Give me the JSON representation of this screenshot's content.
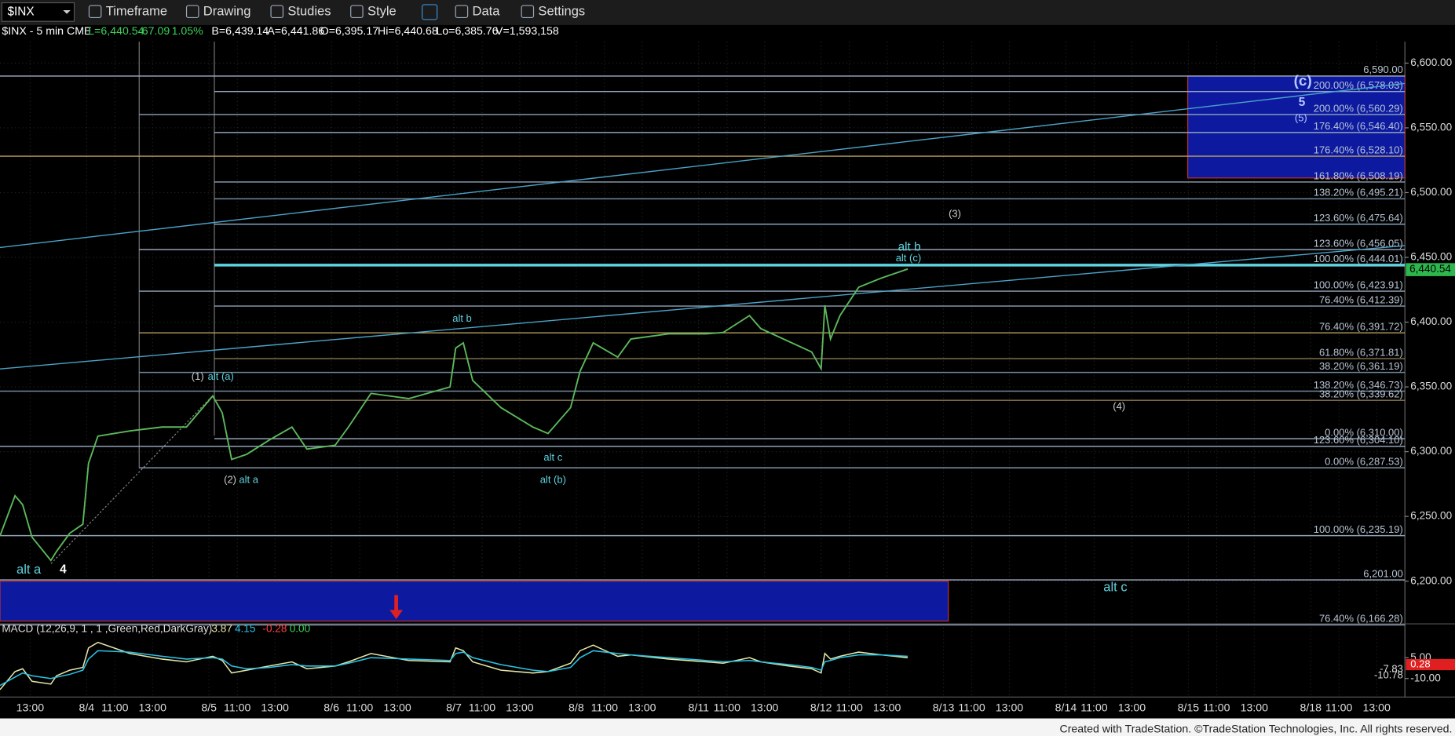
{
  "toolbar": {
    "items": [
      "Timeframe",
      "Drawing",
      "Studies",
      "Style",
      "Data",
      "Settings"
    ]
  },
  "info": [
    "$INX - 5 min CME",
    "L=6,440.54",
    "67.09",
    "1.05%",
    "B=6,439.14",
    "A=6,441.86",
    "O=6,395.17",
    "Hi=6,440.68",
    "Lo=6,385.76",
    "V=1,593,158"
  ],
  "chart_data": [
    {
      "type": "line",
      "x": [
        -4.6,
        -3.8,
        -3.4,
        -2.9,
        -1.9,
        -1.6,
        -0.9,
        -0.2,
        0.1,
        0.6,
        2.3,
        4.0,
        5.3,
        6.7,
        7.2,
        7.7,
        8.5,
        9.7,
        10.9,
        11.7,
        13.2,
        13.9,
        15.1,
        17.1,
        19.3,
        19.6,
        20.0,
        20.5,
        22.0,
        23.7,
        24.5,
        25.7,
        26.2,
        26.9,
        28.2,
        28.9,
        30.9,
        32.9,
        33.8,
        35.2,
        35.8,
        37.3,
        38.5,
        39.0,
        39.2,
        39.5,
        40.0,
        41.0,
        42.2,
        43.6
      ],
      "series": [
        {
          "name": "$INX",
          "color": "#5cb85c",
          "values": [
            6235,
            6266,
            6259,
            6234,
            6216,
            6223,
            6237,
            6244,
            6291,
            6312,
            6316,
            6319,
            6319,
            6343,
            6330,
            6294,
            6298,
            6309,
            6319,
            6302,
            6305,
            6319,
            6345,
            6341,
            6350,
            6380,
            6384,
            6355,
            6334,
            6319,
            6314,
            6334,
            6362,
            6384,
            6373,
            6387,
            6391,
            6391,
            6392,
            6405,
            6395,
            6385,
            6377,
            6364,
            6413,
            6387,
            6405,
            6427,
            6434,
            6441
          ]
        }
      ],
      "xlim": [
        -4.6,
        70
      ],
      "ylim": [
        6166,
        6616.5
      ],
      "xticks": [
        {
          "value": -3,
          "label": "13:00"
        },
        {
          "value": 0,
          "label": "8/4"
        },
        {
          "value": 1.5,
          "label": "11:00"
        },
        {
          "value": 3.5,
          "label": "13:00"
        },
        {
          "value": 6.5,
          "label": "8/5"
        },
        {
          "value": 8,
          "label": "11:00"
        },
        {
          "value": 10,
          "label": "13:00"
        },
        {
          "value": 13,
          "label": "8/6"
        },
        {
          "value": 14.5,
          "label": "11:00"
        },
        {
          "value": 16.5,
          "label": "13:00"
        },
        {
          "value": 19.5,
          "label": "8/7"
        },
        {
          "value": 21,
          "label": "11:00"
        },
        {
          "value": 23,
          "label": "13:00"
        },
        {
          "value": 26,
          "label": "8/8"
        },
        {
          "value": 27.5,
          "label": "11:00"
        },
        {
          "value": 29.5,
          "label": "13:00"
        },
        {
          "value": 32.5,
          "label": "8/11"
        },
        {
          "value": 34,
          "label": "11:00"
        },
        {
          "value": 36,
          "label": "13:00"
        },
        {
          "value": 39,
          "label": "8/12"
        },
        {
          "value": 40.5,
          "label": "11:00"
        },
        {
          "value": 42.5,
          "label": "13:00"
        },
        {
          "value": 45.5,
          "label": "8/13"
        },
        {
          "value": 47,
          "label": "11:00"
        },
        {
          "value": 49,
          "label": "13:00"
        },
        {
          "value": 52,
          "label": "8/14"
        },
        {
          "value": 53.5,
          "label": "11:00"
        },
        {
          "value": 55.5,
          "label": "13:00"
        },
        {
          "value": 58.5,
          "label": "8/15"
        },
        {
          "value": 60,
          "label": "11:00"
        },
        {
          "value": 62,
          "label": "13:00"
        },
        {
          "value": 65,
          "label": "8/18"
        },
        {
          "value": 66.5,
          "label": "11:00"
        },
        {
          "value": 68.5,
          "label": "13:00"
        }
      ],
      "yticks": [
        {
          "value": 6200,
          "label": "6,200.00"
        },
        {
          "value": 6250,
          "label": "6,250.00"
        },
        {
          "value": 6300,
          "label": "6,300.00"
        },
        {
          "value": 6350,
          "label": "6,350.00"
        },
        {
          "value": 6400,
          "label": "6,400.00"
        },
        {
          "value": 6450,
          "label": "6,450.00"
        },
        {
          "value": 6500,
          "label": "6,500.00"
        },
        {
          "value": 6550,
          "label": "6,550.00"
        },
        {
          "value": 6600,
          "label": "6,600.00"
        }
      ],
      "grid": true,
      "levels": [
        {
          "value": 6590.0,
          "label": "6,590.00",
          "color": "#9fb0c4"
        },
        {
          "value": 6578.03,
          "label": "200.00% (6,578.03)",
          "color": "#8fa3b8"
        },
        {
          "value": 6560.29,
          "label": "200.00% (6,560.29)",
          "color": "#8fa3b8"
        },
        {
          "value": 6546.4,
          "label": "176.40% (6,546.40)",
          "color": "#8fa3b8"
        },
        {
          "value": 6528.1,
          "label": "176.40% (6,528.10)",
          "color": "#b8a060"
        },
        {
          "value": 6508.19,
          "label": "161.80% (6,508.19)",
          "color": "#8fa3b8"
        },
        {
          "value": 6495.21,
          "label": "138.20% (6,495.21)",
          "color": "#6f8aa0"
        },
        {
          "value": 6475.64,
          "label": "123.60% (6,475.64)",
          "color": "#8fb3d0"
        },
        {
          "value": 6456.05,
          "label": "123.60% (6,456.05)",
          "color": "#9fb0c4"
        },
        {
          "value": 6444.01,
          "label": "100.00% (6,444.01)",
          "color": "#5fd3e0"
        },
        {
          "value": 6423.91,
          "label": "100.00% (6,423.91)",
          "color": "#8fa3b8"
        },
        {
          "value": 6412.39,
          "label": "76.40% (6,412.39)",
          "color": "#8fa3b8"
        },
        {
          "value": 6391.72,
          "label": "76.40% (6,391.72)",
          "color": "#b8a060"
        },
        {
          "value": 6371.81,
          "label": "61.80% (6,371.81)",
          "color": "#8a7a50"
        },
        {
          "value": 6361.19,
          "label": "38.20% (6,361.19)",
          "color": "#6f8aa0"
        },
        {
          "value": 6346.73,
          "label": "138.20% (6,346.73)",
          "color": "#6f8aa0"
        },
        {
          "value": 6339.62,
          "label": "38.20% (6,339.62)",
          "color": "#8a7a50"
        },
        {
          "value": 6310.0,
          "label": "0.00% (6,310.00)",
          "color": "#8fa3b8"
        },
        {
          "value": 6304.1,
          "label": "123.60% (6,304.10)",
          "color": "#8fa3b8"
        },
        {
          "value": 6287.53,
          "label": "0.00% (6,287.53)",
          "color": "#8fa3b8"
        },
        {
          "value": 6235.19,
          "label": "100.00% (6,235.19)",
          "color": "#8fa3b8"
        },
        {
          "value": 6201.0,
          "label": "6,201.00",
          "color": "#9fb0c4"
        },
        {
          "value": 6166.28,
          "label": "76.40% (6,166.28)",
          "color": "#8fa3b8"
        }
      ],
      "annotations": [
        "(1)",
        "alt (a)",
        "(2)",
        "alt a",
        "alt b",
        "alt c",
        "alt (b)",
        "alt b",
        "alt (c)",
        "(3)",
        "(4)",
        "(c)",
        "5",
        "(5)",
        "alt a",
        "4",
        "alt c"
      ],
      "last_price": {
        "value": 6440.54,
        "label": "6,440.54"
      }
    },
    {
      "type": "line",
      "title": "MACD (12,26,9, 1 , 1 ,Green,Red,DarkGray)",
      "readouts": [
        "3.87",
        "4.15",
        "-0.28",
        "0.00"
      ],
      "x": [
        -4.6,
        -3.8,
        -3.4,
        -2.9,
        -1.9,
        -1.6,
        -0.9,
        -0.2,
        0.1,
        0.6,
        2.3,
        4.0,
        5.3,
        6.7,
        7.2,
        7.7,
        8.5,
        9.7,
        10.9,
        11.7,
        13.2,
        13.9,
        15.1,
        17.1,
        19.3,
        19.6,
        20.0,
        20.5,
        22.0,
        23.7,
        24.5,
        25.7,
        26.2,
        26.9,
        28.2,
        28.9,
        30.9,
        32.9,
        33.8,
        35.2,
        35.8,
        37.3,
        38.5,
        39.0,
        39.2,
        39.5,
        40.0,
        41.0,
        42.2,
        43.6
      ],
      "series": [
        {
          "color": "#e6e6a8",
          "values": [
            -18,
            -5,
            -3,
            -12,
            -14,
            -8,
            -4,
            -2,
            12,
            16,
            8,
            4,
            2,
            6,
            3,
            -6,
            -4,
            -1,
            2,
            -3,
            -1,
            2,
            8,
            3,
            2,
            12,
            10,
            2,
            -4,
            -6,
            -5,
            1,
            10,
            14,
            6,
            7,
            4,
            2,
            1,
            5,
            2,
            -1,
            -3,
            -6,
            8,
            4,
            6,
            9,
            7,
            5
          ]
        },
        {
          "color": "#29c5e6",
          "values": [
            -15,
            -9,
            -6,
            -8,
            -10,
            -9,
            -7,
            -4,
            4,
            10,
            9,
            6,
            4,
            5,
            4,
            -1,
            -3,
            -2,
            0,
            -1,
            -1,
            1,
            5,
            4,
            3,
            8,
            9,
            5,
            0,
            -4,
            -5,
            -2,
            5,
            10,
            8,
            7,
            5,
            3,
            2,
            3,
            2,
            0,
            -2,
            -4,
            2,
            3,
            5,
            7,
            7,
            6
          ]
        }
      ],
      "xlim": [
        -4.6,
        70
      ],
      "ylim": [
        -22,
        28
      ],
      "yticks": [
        {
          "value": 5,
          "label": "5.00"
        },
        {
          "value": -10,
          "label": "-10.00"
        }
      ],
      "tags": [
        "-7.83",
        "-10.78",
        "0.28"
      ]
    }
  ],
  "footer": "Created with TradeStation. ©TradeStation Technologies, Inc. All rights reserved."
}
